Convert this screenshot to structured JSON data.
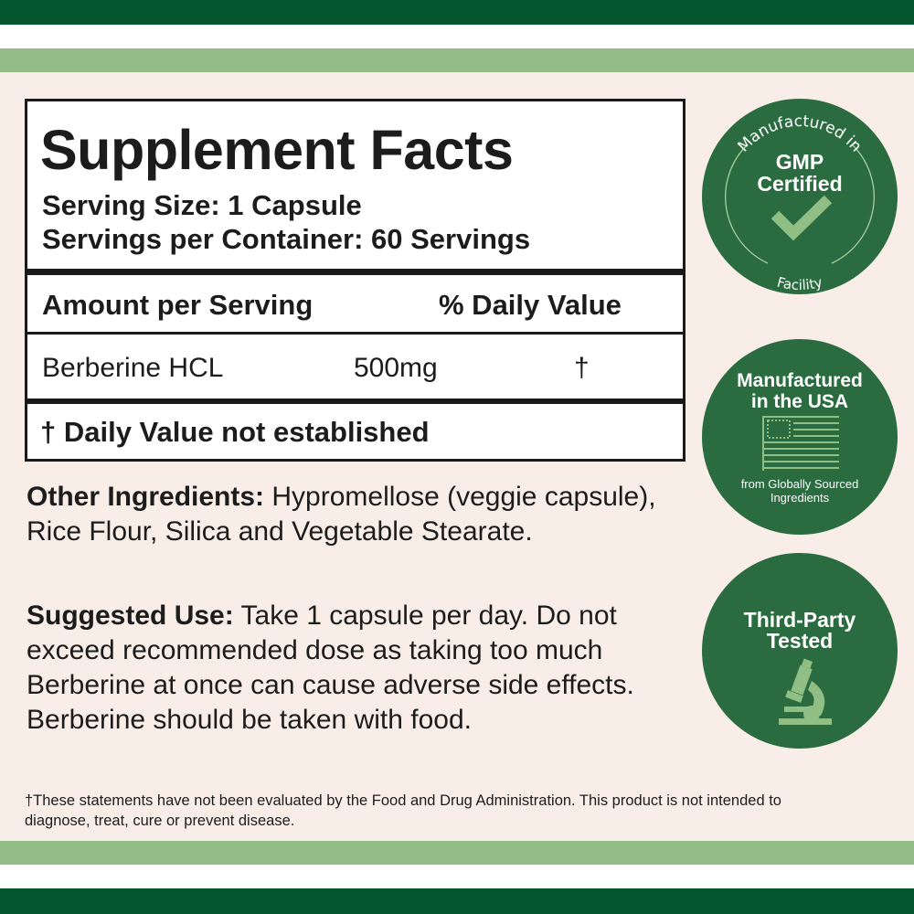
{
  "colors": {
    "dark_green": "#02552d",
    "light_green": "#93bc87",
    "badge_green": "#2a6c40",
    "badge_accent": "#8fbf85",
    "background": "#f8eee7"
  },
  "facts": {
    "title": "Supplement Facts",
    "serving_size": "Serving Size: 1 Capsule",
    "servings_per_container": "Servings per Container: 60 Servings",
    "amount_header": "Amount per Serving",
    "dv_header": "% Daily Value",
    "ingredient": {
      "name": "Berberine HCL",
      "amount": "500mg",
      "dv": "†"
    },
    "footnote": "† Daily Value not established"
  },
  "other_ingredients": {
    "label": "Other Ingredients:",
    "text": " Hypromellose (veggie capsule), Rice Flour, Silica and Vegetable Stearate."
  },
  "suggested_use": {
    "label": "Suggested Use:",
    "text": " Take 1 capsule per day. Do not exceed recommended dose as taking too much Berberine at once can cause adverse side effects. Berberine should be taken with food."
  },
  "disclaimer": "†These statements have not been evaluated by the Food and Drug Administration. This product is not intended to diagnose, treat, cure or prevent disease.",
  "badges": [
    {
      "arc_top": "Manufactured in",
      "line1": "GMP",
      "line2": "Certified",
      "arc_bottom": "Facility",
      "icon": "checkmark-icon"
    },
    {
      "line1": "Manufactured",
      "line2": "in the USA",
      "sub1": "from Globally Sourced",
      "sub2": "Ingredients",
      "icon": "us-flag-icon"
    },
    {
      "line1": "Third-Party",
      "line2": "Tested",
      "icon": "microscope-icon"
    }
  ]
}
